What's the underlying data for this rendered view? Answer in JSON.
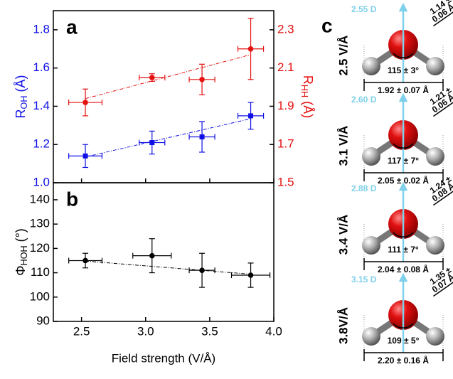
{
  "chart_data": [
    {
      "type": "errorbar_scatter",
      "panel_label": "a",
      "y_label": {
        "main": "R",
        "sub": "OH",
        "unit": " (Å)"
      },
      "y2_label": {
        "main": "R",
        "sub": "HH",
        "unit": " (Å)"
      },
      "xlim": [
        2.28,
        4.0
      ],
      "ylim": [
        1.0,
        1.9
      ],
      "yticks": [
        {
          "value": 1,
          "label": "1.0"
        },
        1.2,
        1.4,
        1.6,
        1.8
      ],
      "y2lim": [
        1.5,
        2.4
      ],
      "y2ticks": [
        1.5,
        1.7,
        1.9,
        2.1,
        2.3
      ],
      "series": [
        {
          "color": "#1010e6",
          "marker": "square",
          "axis": "y",
          "x": [
            2.53,
            3.05,
            3.44,
            3.82
          ],
          "values": [
            1.14,
            1.21,
            1.24,
            1.35
          ],
          "xerr": [
            0.13,
            0.1,
            0.1,
            0.1
          ],
          "yerr": [
            0.06,
            0.06,
            0.08,
            0.07
          ],
          "fit": {
            "x": [
              2.53,
              3.82
            ],
            "y": [
              1.135,
              1.335
            ]
          }
        },
        {
          "color": "#e61010",
          "marker": "circle",
          "axis": "y2",
          "x": [
            2.53,
            3.05,
            3.44,
            3.82
          ],
          "values": [
            1.92,
            2.05,
            2.04,
            2.2
          ],
          "xerr": [
            0.13,
            0.1,
            0.1,
            0.1
          ],
          "yerr": [
            0.07,
            0.02,
            0.08,
            0.16
          ],
          "fit": {
            "x": [
              2.53,
              3.82
            ],
            "y": [
              1.94,
              2.17
            ]
          }
        }
      ]
    },
    {
      "type": "errorbar_scatter",
      "panel_label": "b",
      "x_label": "Field strength (V/Å)",
      "y_label": {
        "main": "Φ",
        "sub": "HOH",
        "unit": " (°)"
      },
      "xlim": [
        2.28,
        4.0
      ],
      "xticks": [
        2.5,
        {
          "value": 3,
          "label": "3.0"
        },
        3.5,
        {
          "value": 4,
          "label": "4.0"
        }
      ],
      "ylim": [
        90,
        147
      ],
      "yticks": [
        90,
        100,
        110,
        120,
        130,
        140
      ],
      "series": [
        {
          "color": "#000000",
          "marker": "circle",
          "axis": "y",
          "x": [
            2.53,
            3.05,
            3.44,
            3.82
          ],
          "values": [
            115,
            117,
            111,
            109
          ],
          "xerr": [
            0.13,
            0.15,
            0.1,
            0.15
          ],
          "yerr": [
            3,
            7,
            7,
            5
          ],
          "fit": {
            "x": [
              2.53,
              3.82
            ],
            "y": [
              114.8,
              109.4
            ]
          }
        }
      ]
    }
  ],
  "panel_c": {
    "label": "c",
    "rows": [
      {
        "field": "2.5 V/Å",
        "dipole": "2.55 D",
        "bond_lines": [
          "1.14 ±",
          "0.06 Å"
        ],
        "angle": "115 ± 3°",
        "hh": "1.92 ± 0.07 Å"
      },
      {
        "field": "3.1 V/Å",
        "dipole": "2.60 D",
        "bond_lines": [
          "1.21 ±",
          "0.06 Å"
        ],
        "angle": "117 ± 7°",
        "hh": "2.05 ± 0.02 Å"
      },
      {
        "field": "3.4 V/Å",
        "dipole": "2.88 D",
        "bond_lines": [
          "1.24 ±",
          "0.08 Å"
        ],
        "angle": "111 ± 7°",
        "hh": "2.04 ± 0.08 Å"
      },
      {
        "field": "3.8V/Å",
        "dipole": "3.15 D",
        "bond_lines": [
          "1.35 ±",
          "0.07 Å"
        ],
        "angle": "109 ± 5°",
        "hh": "2.20 ± 0.16 Å"
      }
    ]
  }
}
